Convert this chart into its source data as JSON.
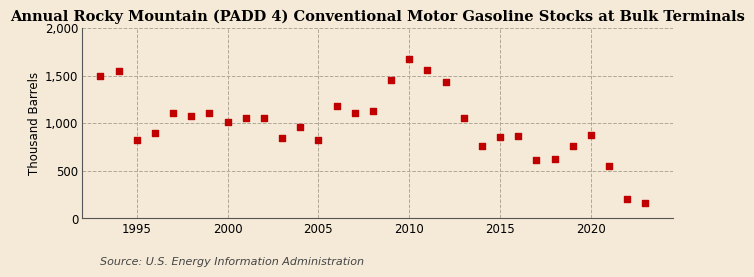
{
  "title": "Annual Rocky Mountain (PADD 4) Conventional Motor Gasoline Stocks at Bulk Terminals",
  "ylabel": "Thousand Barrels",
  "source": "Source: U.S. Energy Information Administration",
  "years": [
    1993,
    1994,
    1995,
    1996,
    1997,
    1998,
    1999,
    2000,
    2001,
    2002,
    2003,
    2004,
    2005,
    2006,
    2007,
    2008,
    2009,
    2010,
    2011,
    2012,
    2013,
    2014,
    2015,
    2016,
    2017,
    2018,
    2019,
    2020,
    2021,
    2022,
    2023
  ],
  "values": [
    1500,
    1545,
    825,
    900,
    1110,
    1080,
    1110,
    1010,
    1050,
    1050,
    840,
    960,
    825,
    1180,
    1110,
    1130,
    1450,
    1680,
    1560,
    1435,
    1060,
    760,
    850,
    870,
    615,
    620,
    760,
    880,
    545,
    200,
    165
  ],
  "marker_color": "#c00000",
  "marker_size": 18,
  "background_color": "#f5ead8",
  "grid_color": "#b0a898",
  "ylim": [
    0,
    2000
  ],
  "yticks": [
    0,
    500,
    1000,
    1500,
    2000
  ],
  "ytick_labels": [
    "0",
    "500",
    "1,000",
    "1,500",
    "2,000"
  ],
  "xlim": [
    1992.0,
    2024.5
  ],
  "xticks": [
    1995,
    2000,
    2005,
    2010,
    2015,
    2020
  ],
  "title_fontsize": 10.5,
  "axis_fontsize": 8.5,
  "source_fontsize": 8
}
